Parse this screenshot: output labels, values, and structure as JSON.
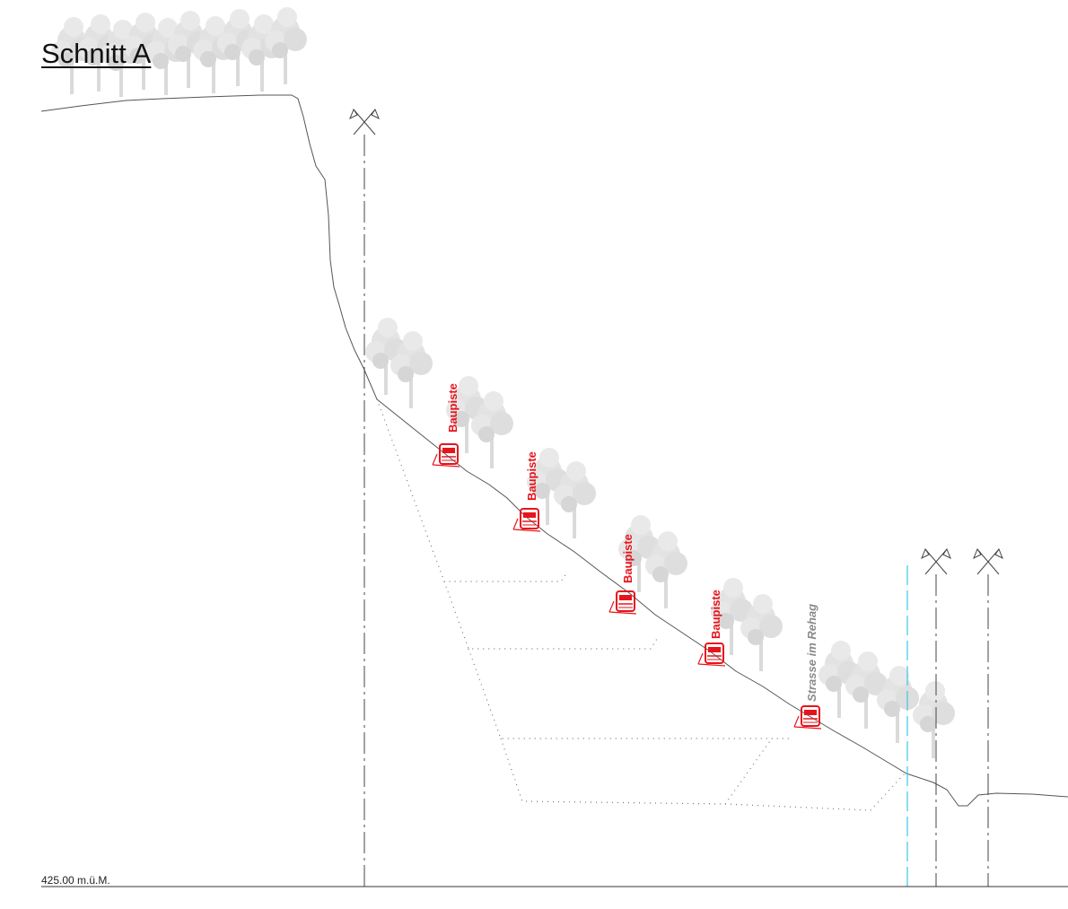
{
  "section": {
    "title": "Schnitt A",
    "elevation_label": "425.00 m.ü.M."
  },
  "labels": {
    "piste_1": "Baupiste",
    "piste_2": "Baupiste",
    "piste_3": "Baupiste",
    "piste_4": "Baupiste",
    "road": "Strasse im Rehag"
  },
  "colors": {
    "terrain": "#555555",
    "axis": "#444444",
    "vehicle": "#e8141c",
    "label_red": "#e8141c",
    "label_grey": "#8a8a8a",
    "tree": "#d9d9d9",
    "water_axis": "#3cc6e6",
    "excavation": "#777777"
  }
}
